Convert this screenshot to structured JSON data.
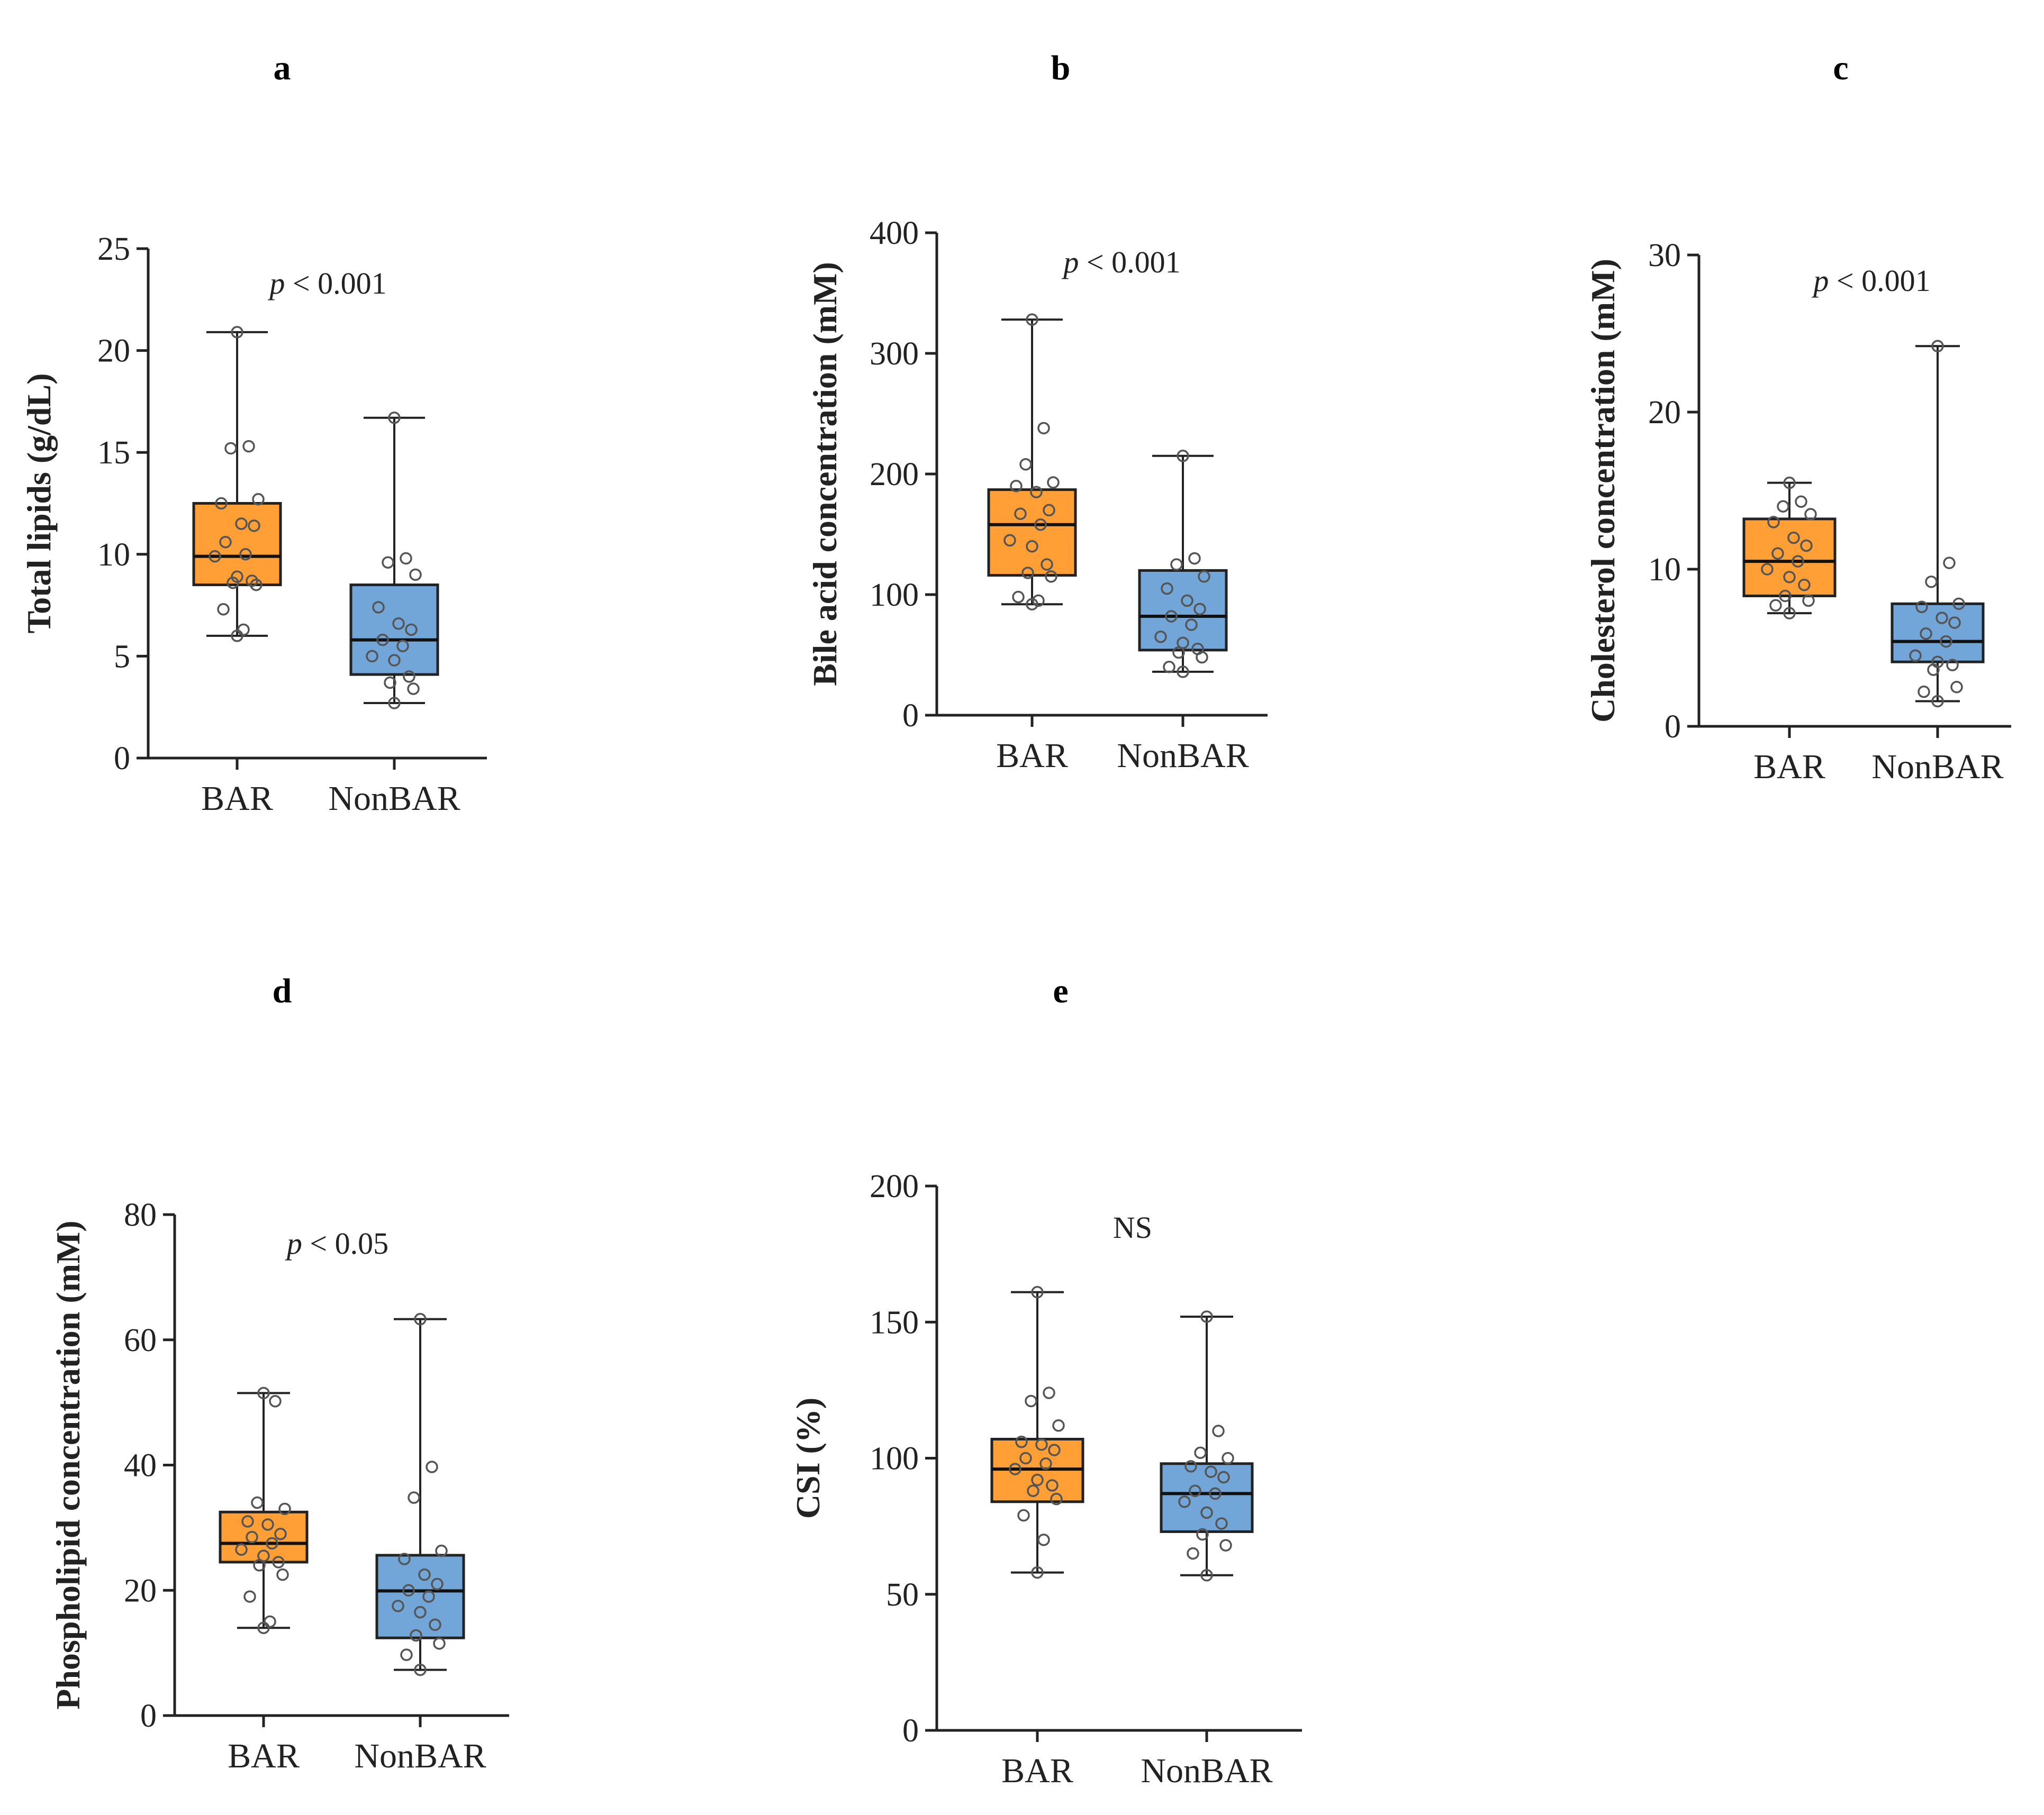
{
  "colors": {
    "bar": "#FF9F36",
    "nonbar": "#72A6D8"
  },
  "chart_data": [
    {
      "panel": "a",
      "type": "box",
      "ylabel": "Total lipids (g/dL)",
      "ylim": [
        0,
        25
      ],
      "yticks": [
        0,
        5,
        10,
        15,
        20,
        25
      ],
      "annotation": "p < 0.001",
      "annotation_prefix": "p",
      "annotation_rest": " < 0.001",
      "categories": [
        "BAR",
        "NonBAR"
      ],
      "groups": [
        {
          "name": "BAR",
          "min": 6.0,
          "q1": 8.5,
          "median": 9.9,
          "q3": 12.5,
          "max": 20.9,
          "points": [
            20.9,
            15.3,
            15.2,
            12.7,
            12.5,
            11.5,
            11.4,
            10.6,
            10.0,
            9.9,
            8.9,
            8.7,
            8.6,
            8.5,
            7.3,
            6.3,
            6.0
          ]
        },
        {
          "name": "NonBAR",
          "min": 2.7,
          "q1": 4.1,
          "median": 5.8,
          "q3": 8.5,
          "max": 16.7,
          "points": [
            16.7,
            9.8,
            9.6,
            9.0,
            7.4,
            6.6,
            6.3,
            5.8,
            5.5,
            5.0,
            4.8,
            4.0,
            3.7,
            3.4,
            2.7
          ]
        }
      ]
    },
    {
      "panel": "b",
      "type": "box",
      "ylabel": "Bile acid concentration (mM)",
      "ylim": [
        0,
        400
      ],
      "yticks": [
        0,
        100,
        200,
        300,
        400
      ],
      "annotation": "p < 0.001",
      "annotation_prefix": "p",
      "annotation_rest": " < 0.001",
      "categories": [
        "BAR",
        "NonBAR"
      ],
      "groups": [
        {
          "name": "BAR",
          "min": 92,
          "q1": 116,
          "median": 158,
          "q3": 187,
          "max": 328,
          "points": [
            328,
            238,
            208,
            193,
            190,
            185,
            170,
            167,
            158,
            145,
            140,
            125,
            118,
            115,
            98,
            95,
            92
          ]
        },
        {
          "name": "NonBAR",
          "min": 36,
          "q1": 54,
          "median": 82,
          "q3": 120,
          "max": 215,
          "points": [
            215,
            130,
            125,
            115,
            105,
            95,
            88,
            82,
            75,
            65,
            60,
            55,
            52,
            48,
            40,
            36
          ]
        }
      ]
    },
    {
      "panel": "c",
      "type": "box",
      "ylabel": "Cholesterol concentration (mM)",
      "ylim": [
        0,
        30
      ],
      "yticks": [
        0,
        10,
        20,
        30
      ],
      "annotation": "p < 0.001",
      "annotation_prefix": "p",
      "annotation_rest": " < 0.001",
      "categories": [
        "BAR",
        "NonBAR"
      ],
      "groups": [
        {
          "name": "BAR",
          "min": 7.2,
          "q1": 8.3,
          "median": 10.5,
          "q3": 13.2,
          "max": 15.5,
          "points": [
            15.5,
            14.3,
            14.0,
            13.5,
            13.0,
            12.0,
            11.5,
            11.0,
            10.5,
            10.0,
            9.5,
            9.0,
            8.3,
            8.0,
            7.7,
            7.2
          ]
        },
        {
          "name": "NonBAR",
          "min": 1.6,
          "q1": 4.1,
          "median": 5.4,
          "q3": 7.8,
          "max": 24.2,
          "points": [
            24.2,
            10.4,
            9.2,
            7.8,
            7.6,
            6.9,
            6.6,
            5.9,
            5.4,
            4.5,
            4.1,
            3.9,
            3.6,
            2.5,
            2.2,
            1.6
          ]
        }
      ]
    },
    {
      "panel": "d",
      "type": "box",
      "ylabel": "Phospholipid concentration (mM)",
      "ylim": [
        0,
        80
      ],
      "yticks": [
        0,
        20,
        40,
        60,
        80
      ],
      "annotation": "p < 0.05",
      "annotation_prefix": "p",
      "annotation_rest": " < 0.05",
      "categories": [
        "BAR",
        "NonBAR"
      ],
      "groups": [
        {
          "name": "BAR",
          "min": 14.0,
          "q1": 24.5,
          "median": 27.5,
          "q3": 32.5,
          "max": 51.5,
          "points": [
            51.5,
            50.2,
            34.0,
            33.0,
            31.0,
            30.5,
            29.0,
            28.5,
            27.5,
            26.5,
            25.5,
            24.5,
            24.0,
            22.5,
            19.0,
            15.0,
            14.0
          ]
        },
        {
          "name": "NonBAR",
          "min": 7.3,
          "q1": 12.4,
          "median": 19.9,
          "q3": 25.6,
          "max": 63.3,
          "points": [
            63.3,
            39.7,
            34.8,
            26.3,
            25.0,
            22.5,
            21.0,
            20.0,
            19.0,
            17.5,
            16.5,
            14.5,
            12.8,
            11.5,
            9.7,
            7.3
          ]
        }
      ]
    },
    {
      "panel": "e",
      "type": "box",
      "ylabel": "CSI (%)",
      "ylim": [
        0,
        200
      ],
      "yticks": [
        0,
        50,
        100,
        150,
        200
      ],
      "annotation": "NS",
      "annotation_prefix": "",
      "annotation_rest": "NS",
      "categories": [
        "BAR",
        "NonBAR"
      ],
      "groups": [
        {
          "name": "BAR",
          "min": 58,
          "q1": 84,
          "median": 96,
          "q3": 107,
          "max": 161,
          "points": [
            161,
            124,
            121,
            112,
            106,
            105,
            103,
            100,
            98,
            96,
            92,
            90,
            88,
            85,
            79,
            70,
            58
          ]
        },
        {
          "name": "NonBAR",
          "min": 57,
          "q1": 73,
          "median": 87,
          "q3": 98,
          "max": 152,
          "points": [
            152,
            110,
            102,
            100,
            97,
            95,
            93,
            88,
            87,
            84,
            80,
            76,
            72,
            68,
            65,
            57
          ]
        }
      ]
    }
  ]
}
